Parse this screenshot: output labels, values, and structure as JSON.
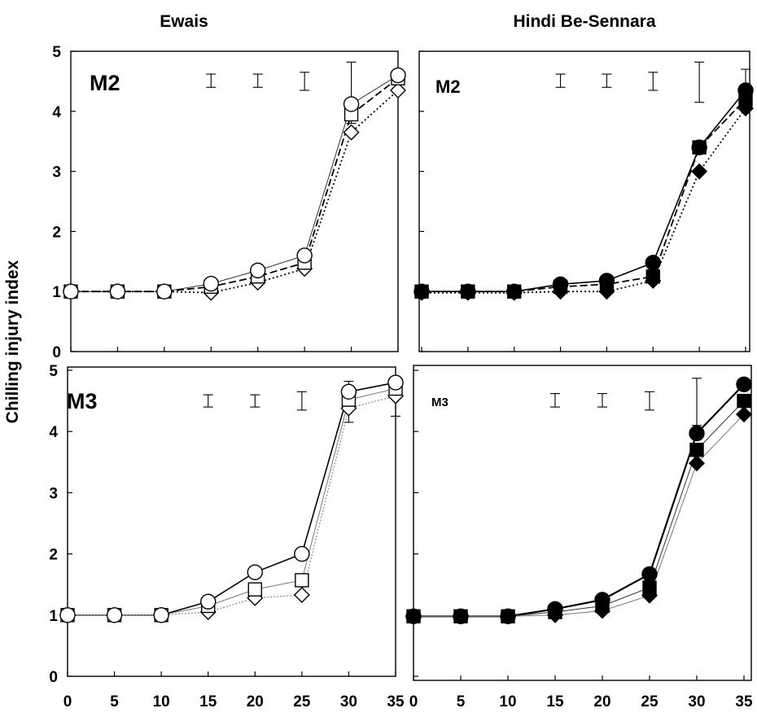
{
  "ylabel": "Chilling injury index",
  "chart_data": [
    {
      "type": "line",
      "column_title": "Ewais",
      "panel_label": "M2",
      "ylim": [
        0,
        5
      ],
      "y_ticks": [
        "0",
        "1",
        "2",
        "3",
        "4",
        "5"
      ],
      "x_ticks": [],
      "x": [
        0,
        5,
        10,
        15,
        20,
        25,
        30,
        35
      ],
      "series": [
        {
          "values": [
            1.0,
            1.0,
            1.0,
            1.13,
            1.35,
            1.6,
            4.12,
            4.6
          ],
          "marker": "circle",
          "filled": false,
          "line": "solid-thin"
        },
        {
          "values": [
            1.0,
            1.0,
            1.0,
            1.08,
            1.25,
            1.48,
            3.95,
            4.55
          ],
          "marker": "square",
          "filled": false,
          "line": "dashed"
        },
        {
          "values": [
            1.0,
            1.0,
            1.0,
            0.98,
            1.15,
            1.38,
            3.65,
            4.35
          ],
          "marker": "diamond",
          "filled": false,
          "line": "dotted"
        }
      ],
      "error_bars": [
        {
          "x": 15,
          "low": 4.4,
          "high": 4.62
        },
        {
          "x": 20,
          "low": 4.4,
          "high": 4.62
        },
        {
          "x": 25,
          "low": 4.35,
          "high": 4.65
        },
        {
          "x": 30,
          "low": 3.8,
          "high": 4.82
        },
        {
          "x": 35,
          "low": 4.45,
          "high": 4.7
        }
      ]
    },
    {
      "type": "line",
      "column_title": "Hindi Be-Sennara",
      "panel_label": "M2",
      "ylim": [
        0,
        5
      ],
      "y_ticks": [],
      "x_ticks": [],
      "x": [
        0,
        5,
        10,
        15,
        20,
        25,
        30,
        35
      ],
      "series": [
        {
          "values": [
            1.0,
            1.0,
            1.0,
            1.12,
            1.18,
            1.48,
            3.4,
            4.35
          ],
          "marker": "circle",
          "filled": true,
          "line": "solid"
        },
        {
          "values": [
            1.0,
            1.0,
            1.0,
            1.08,
            1.12,
            1.25,
            3.4,
            4.2
          ],
          "marker": "square",
          "filled": true,
          "line": "dashed"
        },
        {
          "values": [
            0.98,
            0.98,
            0.98,
            1.0,
            1.0,
            1.18,
            3.0,
            4.05
          ],
          "marker": "diamond",
          "filled": true,
          "line": "dotted"
        }
      ],
      "error_bars": [
        {
          "x": 15,
          "low": 4.4,
          "high": 4.62
        },
        {
          "x": 20,
          "low": 4.4,
          "high": 4.62
        },
        {
          "x": 25,
          "low": 4.35,
          "high": 4.65
        },
        {
          "x": 30,
          "low": 4.15,
          "high": 4.82
        },
        {
          "x": 35,
          "low": 4.0,
          "high": 4.7
        }
      ]
    },
    {
      "type": "line",
      "column_title": "",
      "panel_label": "M3",
      "ylim": [
        0,
        5
      ],
      "y_ticks": [
        "0",
        "1",
        "2",
        "3",
        "4",
        "5"
      ],
      "x_ticks": [
        "0",
        "5",
        "10",
        "15",
        "20",
        "25",
        "30",
        "35"
      ],
      "x": [
        0,
        5,
        10,
        15,
        20,
        25,
        30,
        35
      ],
      "series": [
        {
          "values": [
            1.0,
            1.0,
            1.0,
            1.22,
            1.7,
            2.0,
            4.65,
            4.8
          ],
          "marker": "circle",
          "filled": false,
          "line": "solid"
        },
        {
          "values": [
            1.0,
            1.0,
            1.0,
            1.15,
            1.42,
            1.57,
            4.52,
            4.7
          ],
          "marker": "square",
          "filled": false,
          "line": "solid-gray"
        },
        {
          "values": [
            1.0,
            1.0,
            1.0,
            1.05,
            1.28,
            1.33,
            4.38,
            4.58
          ],
          "marker": "diamond",
          "filled": false,
          "line": "dotted-gray"
        }
      ],
      "error_bars": [
        {
          "x": 15,
          "low": 4.4,
          "high": 4.6
        },
        {
          "x": 20,
          "low": 4.4,
          "high": 4.6
        },
        {
          "x": 25,
          "low": 4.35,
          "high": 4.65
        },
        {
          "x": 30,
          "low": 4.15,
          "high": 4.82
        },
        {
          "x": 35,
          "low": 4.25,
          "high": 4.75
        }
      ]
    },
    {
      "type": "line",
      "column_title": "",
      "panel_label": "M3",
      "ylim": [
        0,
        5
      ],
      "y_ticks": [],
      "x_ticks": [
        "0",
        "5",
        "10",
        "15",
        "20",
        "25",
        "30",
        "35"
      ],
      "x": [
        0,
        5,
        10,
        15,
        20,
        25,
        30,
        35
      ],
      "series": [
        {
          "values": [
            0.98,
            0.98,
            0.98,
            1.1,
            1.25,
            1.67,
            3.97,
            4.77
          ],
          "marker": "circle",
          "filled": true,
          "line": "solid-thick"
        },
        {
          "values": [
            0.98,
            0.98,
            0.98,
            1.05,
            1.15,
            1.45,
            3.7,
            4.5
          ],
          "marker": "square",
          "filled": true,
          "line": "solid-thin"
        },
        {
          "values": [
            0.98,
            0.98,
            0.98,
            1.0,
            1.07,
            1.32,
            3.48,
            4.28
          ],
          "marker": "diamond",
          "filled": true,
          "line": "solid-gray"
        }
      ],
      "error_bars": [
        {
          "x": 15,
          "low": 4.4,
          "high": 4.62
        },
        {
          "x": 20,
          "low": 4.4,
          "high": 4.62
        },
        {
          "x": 25,
          "low": 4.35,
          "high": 4.65
        },
        {
          "x": 30,
          "low": 4.1,
          "high": 4.87
        }
      ]
    }
  ]
}
